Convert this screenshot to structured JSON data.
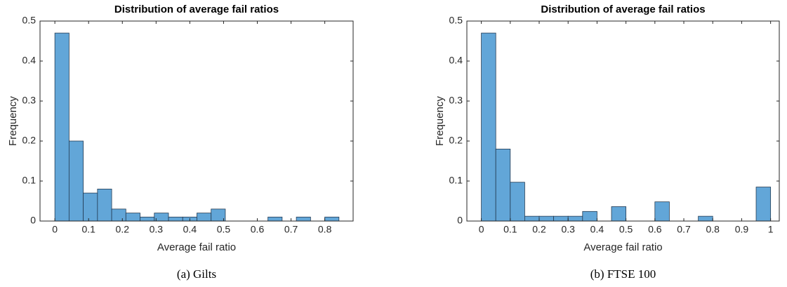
{
  "chart_data": [
    {
      "type": "histogram",
      "title": "Distribution of average fail ratios",
      "xlabel": "Average fail ratio",
      "ylabel": "Frequency",
      "caption": "(a) Gilts",
      "bins": [
        0,
        0.0421,
        0.0842,
        0.1263,
        0.1684,
        0.2105,
        0.2526,
        0.2947,
        0.3368,
        0.3789,
        0.421,
        0.4631,
        0.5052,
        0.5473,
        0.5894,
        0.6315,
        0.6736,
        0.7157,
        0.7578,
        0.7999,
        0.842
      ],
      "values": [
        0.47,
        0.2,
        0.07,
        0.08,
        0.03,
        0.02,
        0.01,
        0.02,
        0.01,
        0.01,
        0.02,
        0.03,
        0,
        0,
        0,
        0.01,
        0,
        0.01,
        0,
        0.01
      ],
      "color": "#62a6d8",
      "edgecolor": "#243b53",
      "xlim": [
        -0.044,
        0.884
      ],
      "xticks": [
        0,
        0.1,
        0.2,
        0.3,
        0.4,
        0.5,
        0.6,
        0.7,
        0.8
      ],
      "ylim": [
        0,
        0.5
      ],
      "yticks": [
        0,
        0.1,
        0.2,
        0.3,
        0.4,
        0.5
      ]
    },
    {
      "type": "histogram",
      "title": "Distribution of average fail ratios",
      "xlabel": "Average fail ratio",
      "ylabel": "Frequency",
      "caption": "(b) FTSE 100",
      "bins": [
        0,
        0.05,
        0.1,
        0.15,
        0.2,
        0.25,
        0.3,
        0.35,
        0.4,
        0.45,
        0.5,
        0.55,
        0.6,
        0.65,
        0.7,
        0.75,
        0.8,
        0.85,
        0.9,
        0.95,
        1
      ],
      "values": [
        0.47,
        0.18,
        0.097,
        0.012,
        0.012,
        0.012,
        0.012,
        0.024,
        0,
        0.036,
        0,
        0,
        0.048,
        0,
        0,
        0.012,
        0,
        0,
        0,
        0.085
      ],
      "color": "#62a6d8",
      "edgecolor": "#243b53",
      "xlim": [
        -0.05,
        1.03
      ],
      "xticks": [
        0,
        0.1,
        0.2,
        0.3,
        0.4,
        0.5,
        0.6,
        0.7,
        0.8,
        0.9,
        1
      ],
      "ylim": [
        0,
        0.5
      ],
      "yticks": [
        0,
        0.1,
        0.2,
        0.3,
        0.4,
        0.5
      ]
    }
  ]
}
